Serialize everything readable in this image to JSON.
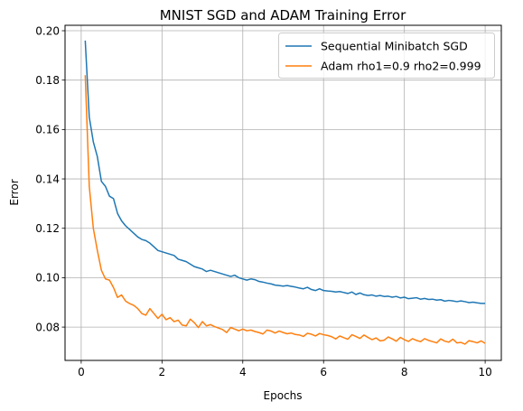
{
  "chart_data": {
    "type": "line",
    "title": "MNIST SGD and ADAM Training Error",
    "xlabel": "Epochs",
    "ylabel": "Error",
    "xlim": [
      -0.4,
      10.4
    ],
    "ylim": [
      0.0665,
      0.2022
    ],
    "xticks": [
      0,
      2,
      4,
      6,
      8,
      10
    ],
    "yticks": [
      0.08,
      0.1,
      0.12,
      0.14,
      0.16,
      0.18,
      0.2
    ],
    "xtick_labels": [
      "0",
      "2",
      "4",
      "6",
      "8",
      "10"
    ],
    "ytick_labels": [
      "0.08",
      "0.10",
      "0.12",
      "0.14",
      "0.16",
      "0.18",
      "0.20"
    ],
    "grid": true,
    "legend_position": "top-right",
    "series": [
      {
        "name": "Sequential Minibatch SGD",
        "color": "#1f77b4",
        "x": [
          0.1,
          0.2,
          0.3,
          0.4,
          0.5,
          0.6,
          0.7,
          0.8,
          0.9,
          1.0,
          1.1,
          1.2,
          1.3,
          1.4,
          1.5,
          1.6,
          1.7,
          1.8,
          1.9,
          2.0,
          2.1,
          2.2,
          2.3,
          2.4,
          2.5,
          2.6,
          2.7,
          2.8,
          2.9,
          3.0,
          3.1,
          3.2,
          3.3,
          3.4,
          3.5,
          3.6,
          3.7,
          3.8,
          3.9,
          4.0,
          4.1,
          4.2,
          4.3,
          4.4,
          4.5,
          4.6,
          4.7,
          4.8,
          4.9,
          5.0,
          5.1,
          5.2,
          5.3,
          5.4,
          5.5,
          5.6,
          5.7,
          5.8,
          5.9,
          6.0,
          6.1,
          6.2,
          6.3,
          6.4,
          6.5,
          6.6,
          6.7,
          6.8,
          6.9,
          7.0,
          7.1,
          7.2,
          7.3,
          7.4,
          7.5,
          7.6,
          7.7,
          7.8,
          7.9,
          8.0,
          8.1,
          8.2,
          8.3,
          8.4,
          8.5,
          8.6,
          8.7,
          8.8,
          8.9,
          9.0,
          9.1,
          9.2,
          9.3,
          9.4,
          9.5,
          9.6,
          9.7,
          9.8,
          9.9,
          10.0
        ],
        "y": [
          0.196,
          0.165,
          0.155,
          0.149,
          0.139,
          0.137,
          0.133,
          0.132,
          0.126,
          0.123,
          0.121,
          0.1195,
          0.118,
          0.1165,
          0.1155,
          0.115,
          0.114,
          0.1125,
          0.111,
          0.1105,
          0.11,
          0.1095,
          0.109,
          0.1075,
          0.107,
          0.1065,
          0.1055,
          0.1045,
          0.104,
          0.1035,
          0.1025,
          0.103,
          0.1025,
          0.102,
          0.1015,
          0.101,
          0.1005,
          0.101,
          0.1,
          0.0995,
          0.099,
          0.0995,
          0.0992,
          0.0985,
          0.0982,
          0.0978,
          0.0975,
          0.097,
          0.0968,
          0.0966,
          0.0968,
          0.0965,
          0.0962,
          0.0958,
          0.0955,
          0.0961,
          0.0952,
          0.0948,
          0.0955,
          0.0948,
          0.0946,
          0.0945,
          0.0942,
          0.0944,
          0.094,
          0.0936,
          0.0942,
          0.0932,
          0.0938,
          0.0931,
          0.0928,
          0.093,
          0.0925,
          0.0928,
          0.0924,
          0.0925,
          0.0921,
          0.0924,
          0.0918,
          0.0921,
          0.0915,
          0.0917,
          0.0919,
          0.0913,
          0.0916,
          0.0912,
          0.0913,
          0.0909,
          0.0911,
          0.0905,
          0.0908,
          0.0906,
          0.0903,
          0.0906,
          0.0903,
          0.0899,
          0.0901,
          0.0898,
          0.0896,
          0.0896
        ]
      },
      {
        "name": "Adam rho1=0.9 rho2=0.999",
        "color": "#ff7f0e",
        "x": [
          0.1,
          0.2,
          0.3,
          0.4,
          0.5,
          0.6,
          0.7,
          0.8,
          0.9,
          1.0,
          1.1,
          1.2,
          1.3,
          1.4,
          1.5,
          1.6,
          1.7,
          1.8,
          1.9,
          2.0,
          2.1,
          2.2,
          2.3,
          2.4,
          2.5,
          2.6,
          2.7,
          2.8,
          2.9,
          3.0,
          3.1,
          3.2,
          3.3,
          3.4,
          3.5,
          3.6,
          3.7,
          3.8,
          3.9,
          4.0,
          4.1,
          4.2,
          4.3,
          4.4,
          4.5,
          4.6,
          4.7,
          4.8,
          4.9,
          5.0,
          5.1,
          5.2,
          5.3,
          5.4,
          5.5,
          5.6,
          5.7,
          5.8,
          5.9,
          6.0,
          6.1,
          6.2,
          6.3,
          6.4,
          6.5,
          6.6,
          6.7,
          6.8,
          6.9,
          7.0,
          7.1,
          7.2,
          7.3,
          7.4,
          7.5,
          7.6,
          7.7,
          7.8,
          7.9,
          8.0,
          8.1,
          8.2,
          8.3,
          8.4,
          8.5,
          8.6,
          8.7,
          8.8,
          8.9,
          9.0,
          9.1,
          9.2,
          9.3,
          9.4,
          9.5,
          9.6,
          9.7,
          9.8,
          9.9,
          10.0
        ],
        "y": [
          0.182,
          0.137,
          0.12,
          0.111,
          0.103,
          0.0995,
          0.099,
          0.096,
          0.092,
          0.093,
          0.0905,
          0.0895,
          0.0888,
          0.0875,
          0.0855,
          0.0848,
          0.0875,
          0.0855,
          0.0835,
          0.0852,
          0.083,
          0.0838,
          0.0822,
          0.0828,
          0.0808,
          0.0805,
          0.0832,
          0.0818,
          0.0798,
          0.0822,
          0.0805,
          0.081,
          0.0802,
          0.0796,
          0.079,
          0.0778,
          0.0798,
          0.0792,
          0.0785,
          0.0792,
          0.0785,
          0.0788,
          0.0782,
          0.0778,
          0.0772,
          0.0788,
          0.0784,
          0.0776,
          0.0784,
          0.0778,
          0.0773,
          0.0776,
          0.077,
          0.0768,
          0.0762,
          0.0775,
          0.0771,
          0.0764,
          0.0774,
          0.0769,
          0.0766,
          0.0761,
          0.0752,
          0.0764,
          0.0757,
          0.0751,
          0.0769,
          0.0762,
          0.0754,
          0.0768,
          0.0758,
          0.0749,
          0.0756,
          0.0744,
          0.0747,
          0.076,
          0.0752,
          0.0743,
          0.0758,
          0.0749,
          0.0742,
          0.0753,
          0.0746,
          0.0741,
          0.0753,
          0.0746,
          0.0741,
          0.0736,
          0.0752,
          0.0743,
          0.0739,
          0.0751,
          0.0736,
          0.0738,
          0.0731,
          0.0745,
          0.0741,
          0.0736,
          0.0744,
          0.0734
        ]
      }
    ]
  }
}
